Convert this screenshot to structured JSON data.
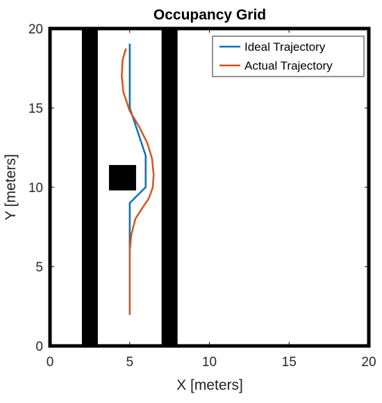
{
  "chart_data": {
    "type": "line",
    "title": "Occupancy Grid",
    "xlabel": "X [meters]",
    "ylabel": "Y [meters]",
    "xlim": [
      0,
      20
    ],
    "ylim": [
      0,
      20
    ],
    "xticks": [
      0,
      5,
      10,
      15,
      20
    ],
    "yticks": [
      0,
      5,
      10,
      15,
      20
    ],
    "grid": false,
    "legend_position": "top-right",
    "obstacles": [
      {
        "x": [
          2,
          3
        ],
        "y": [
          0,
          20
        ]
      },
      {
        "x": [
          7,
          8
        ],
        "y": [
          0,
          20
        ]
      },
      {
        "x": [
          3.7,
          5.4
        ],
        "y": [
          9.8,
          11.4
        ]
      }
    ],
    "obstacle_color": "#000000",
    "series": [
      {
        "name": "Ideal Trajectory",
        "color": "#0072BD",
        "x": [
          5,
          5,
          5,
          6,
          6,
          5,
          5
        ],
        "y": [
          2,
          6,
          9,
          10,
          12,
          15,
          19
        ]
      },
      {
        "name": "Actual Trajectory",
        "color": "#D95319",
        "x": [
          5,
          5.0,
          5.0,
          5.1,
          5.35,
          5.8,
          6.2,
          6.45,
          6.5,
          6.4,
          6.1,
          5.6,
          5.0,
          4.6,
          4.5,
          4.55,
          4.75
        ],
        "y": [
          2,
          4,
          6,
          7,
          8,
          8.7,
          9.3,
          10.0,
          10.8,
          11.8,
          12.8,
          13.8,
          14.8,
          16.0,
          17.0,
          18.0,
          18.7
        ]
      }
    ]
  }
}
